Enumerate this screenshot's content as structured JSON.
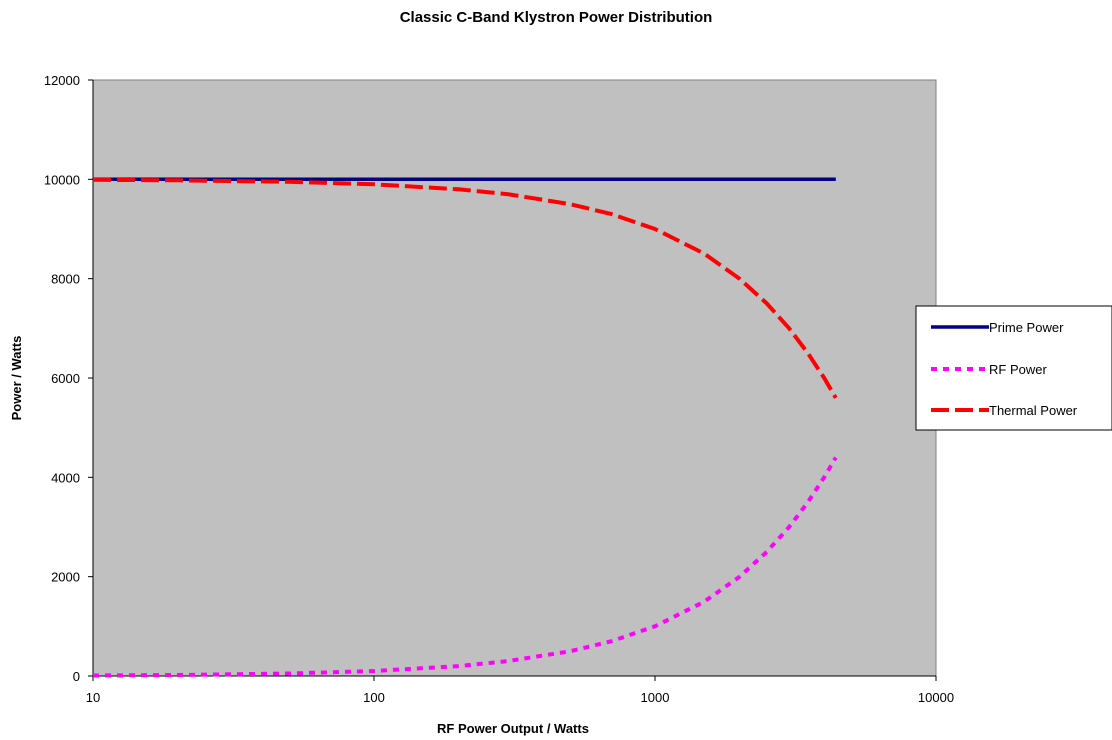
{
  "chart_data": {
    "type": "line",
    "title": "Classic C-Band Klystron Power Distribution",
    "xlabel": "RF Power Output / Watts",
    "ylabel": "Power / Watts",
    "xscale": "log",
    "xlim": [
      10,
      10000
    ],
    "ylim": [
      0,
      12000
    ],
    "x_ticks": [
      10,
      100,
      1000,
      10000
    ],
    "y_ticks": [
      0,
      2000,
      4000,
      6000,
      8000,
      10000,
      12000
    ],
    "x_tick_labels": [
      "10",
      "100",
      "1000",
      "10000"
    ],
    "y_tick_labels": [
      "0",
      "2000",
      "4000",
      "6000",
      "8000",
      "10000",
      "12000"
    ],
    "grid": false,
    "plot_background": "#C0C0C0",
    "legend_position": "right",
    "x": [
      10,
      20,
      50,
      100,
      200,
      300,
      500,
      700,
      1000,
      1500,
      2000,
      2500,
      3000,
      3500,
      4000,
      4400
    ],
    "series": [
      {
        "name": "Prime Power",
        "color": "#000080",
        "style": "solid",
        "values": [
          10000,
          10000,
          10000,
          10000,
          10000,
          10000,
          10000,
          10000,
          10000,
          10000,
          10000,
          10000,
          10000,
          10000,
          10000,
          10000
        ]
      },
      {
        "name": "RF Power",
        "color": "#FF00FF",
        "style": "dotted",
        "values": [
          10,
          20,
          50,
          100,
          200,
          300,
          500,
          700,
          1000,
          1500,
          2000,
          2500,
          3000,
          3500,
          4000,
          4400
        ]
      },
      {
        "name": "Thermal Power",
        "color": "#FF0000",
        "style": "dashed",
        "values": [
          9990,
          9980,
          9950,
          9900,
          9800,
          9700,
          9500,
          9300,
          9000,
          8500,
          8000,
          7500,
          7000,
          6500,
          6000,
          5600
        ]
      }
    ]
  }
}
